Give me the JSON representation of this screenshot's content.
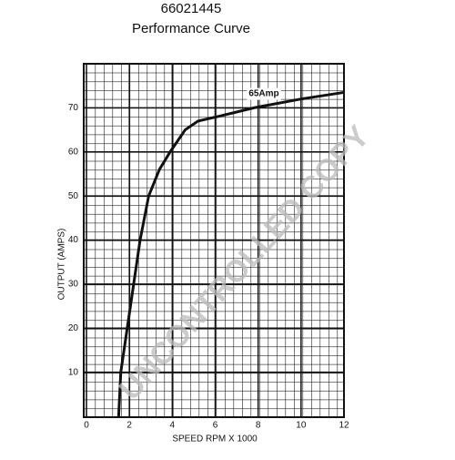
{
  "chart_data": {
    "type": "line",
    "title": "66021445",
    "subtitle": "Performance Curve",
    "x_label": "SPEED RPM X 1000",
    "y_label": "OUTPUT (AMPS)",
    "annotation": "65Amp",
    "watermark": "UNCONTROLLED COPY",
    "x": [
      1.5,
      1.6,
      1.9,
      2.2,
      2.5,
      2.9,
      3.4,
      3.9,
      4.6,
      5.2,
      6.1,
      7.8,
      10,
      12
    ],
    "series": [
      {
        "name": "65Amp",
        "color": "#111111",
        "values": [
          0,
          10,
          20,
          30,
          40,
          50,
          56,
          60,
          65,
          67,
          68,
          70,
          72,
          73.5
        ]
      }
    ],
    "xlim": [
      0,
      12
    ],
    "xticks": [
      0,
      2,
      4,
      6,
      8,
      10,
      12
    ],
    "ylim": [
      0,
      80
    ],
    "yticks": [
      10,
      20,
      30,
      40,
      50,
      60,
      70
    ],
    "grid": true
  }
}
